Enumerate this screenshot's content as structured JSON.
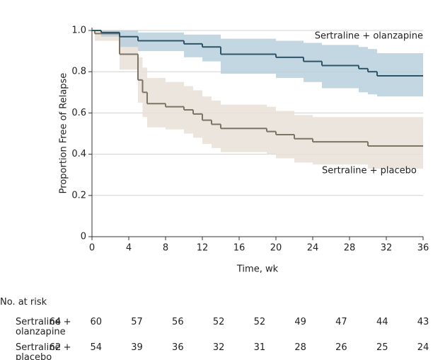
{
  "chart_data": {
    "type": "step",
    "y_label": "Proportion Free of Relapse",
    "x_label": "Time, wk",
    "xlim": [
      0,
      36
    ],
    "xticks": [
      0,
      4,
      8,
      12,
      16,
      20,
      24,
      28,
      32,
      36
    ],
    "ylim": [
      0,
      1
    ],
    "yticks": [
      0,
      0.2,
      0.4,
      0.6,
      0.8,
      {
        "value": 1,
        "label": "1.0"
      }
    ],
    "grid": true,
    "series": [
      {
        "name": "Sertraline + placebo",
        "color": "#7d7464",
        "band_color": "#e9e1d7",
        "x": [
          0,
          0.3,
          3,
          5,
          5.5,
          6,
          8,
          10,
          11,
          12,
          13,
          14,
          19,
          20,
          22,
          24,
          30
        ],
        "values": [
          1,
          0.985,
          0.885,
          0.76,
          0.7,
          0.645,
          0.63,
          0.615,
          0.595,
          0.565,
          0.545,
          0.525,
          0.51,
          0.495,
          0.475,
          0.46,
          0.44
        ],
        "lower": [
          1,
          0.95,
          0.81,
          0.65,
          0.58,
          0.53,
          0.52,
          0.5,
          0.48,
          0.45,
          0.43,
          0.41,
          0.4,
          0.38,
          0.36,
          0.35,
          0.33
        ],
        "upper": [
          1,
          1,
          0.96,
          0.87,
          0.82,
          0.77,
          0.75,
          0.73,
          0.71,
          0.68,
          0.66,
          0.64,
          0.63,
          0.61,
          0.59,
          0.58,
          0.58
        ]
      },
      {
        "name": "Sertraline + olanzapine",
        "color": "#2d5468",
        "band_color": "#b9d0dd",
        "x": [
          0,
          1,
          3,
          5,
          10,
          12,
          14,
          20,
          23,
          25,
          29,
          30,
          31
        ],
        "values": [
          1,
          0.99,
          0.97,
          0.95,
          0.935,
          0.92,
          0.885,
          0.87,
          0.85,
          0.83,
          0.815,
          0.8,
          0.78
        ],
        "lower": [
          1,
          0.97,
          0.92,
          0.9,
          0.87,
          0.85,
          0.79,
          0.77,
          0.75,
          0.72,
          0.7,
          0.69,
          0.68
        ],
        "upper": [
          1,
          1,
          1,
          0.99,
          0.98,
          0.98,
          0.96,
          0.95,
          0.94,
          0.93,
          0.92,
          0.91,
          0.89
        ]
      }
    ],
    "risk_table": {
      "title": "No. at risk",
      "rows": [
        {
          "name": "Sertraline + olanzapine",
          "counts": [
            64,
            60,
            57,
            56,
            52,
            52,
            49,
            47,
            44,
            43
          ]
        },
        {
          "name": "Sertraline + placebo",
          "counts": [
            62,
            54,
            39,
            36,
            32,
            31,
            28,
            26,
            25,
            24
          ]
        }
      ]
    }
  }
}
